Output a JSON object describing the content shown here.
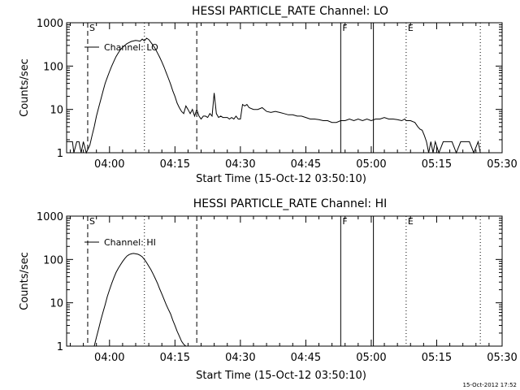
{
  "footer": {
    "timestamp": "15-Oct-2012 17:52"
  },
  "chart_data": [
    {
      "type": "line",
      "title": "HESSI PARTICLE_RATE Channel: LO",
      "xlabel": "Start Time (15-Oct-12 03:50:10)",
      "ylabel": "Counts/sec",
      "xlim": [
        "03:50:10",
        "05:30:00"
      ],
      "ylim": [
        1,
        1000
      ],
      "yscale": "log",
      "xticks": [
        "04:00",
        "04:15",
        "04:30",
        "04:45",
        "05:00",
        "05:15",
        "05:30"
      ],
      "yticks": [
        "1",
        "10",
        "100",
        "1000"
      ],
      "legend": {
        "label": "Channel: LO",
        "position": "top-left"
      },
      "markers": [
        {
          "label": "S",
          "time": "03:55:00",
          "style": "dashed"
        },
        {
          "label": "",
          "time": "04:08:00",
          "style": "dotted"
        },
        {
          "label": "",
          "time": "04:20:00",
          "style": "dashed"
        },
        {
          "label": "F",
          "time": "04:53:00",
          "style": "solid"
        },
        {
          "label": "",
          "time": "05:00:30",
          "style": "solid"
        },
        {
          "label": "E",
          "time": "05:08:00",
          "style": "dotted"
        },
        {
          "label": "",
          "time": "05:25:00",
          "style": "dotted"
        }
      ],
      "series": [
        {
          "name": "Channel: LO",
          "x": [
            "03:50:10",
            "03:51:30",
            "03:51:50",
            "03:52:30",
            "03:53:00",
            "03:53:30",
            "03:54:00",
            "03:54:40",
            "03:55:30",
            "03:56:00",
            "03:56:30",
            "03:57:00",
            "03:57:30",
            "03:58:00",
            "03:58:30",
            "03:59:00",
            "03:59:30",
            "04:00:00",
            "04:00:30",
            "04:01:00",
            "04:01:30",
            "04:02:00",
            "04:02:30",
            "04:03:00",
            "04:03:30",
            "04:04:00",
            "04:04:30",
            "04:05:00",
            "04:05:30",
            "04:06:00",
            "04:06:30",
            "04:07:00",
            "04:07:30",
            "04:08:00",
            "04:08:30",
            "04:09:00",
            "04:09:30",
            "04:10:00",
            "04:10:30",
            "04:11:00",
            "04:11:30",
            "04:12:00",
            "04:12:30",
            "04:13:00",
            "04:13:30",
            "04:14:00",
            "04:14:30",
            "04:15:00",
            "04:15:30",
            "04:16:00",
            "04:16:30",
            "04:17:00",
            "04:17:30",
            "04:18:00",
            "04:18:30",
            "04:19:00",
            "04:19:30",
            "04:20:00",
            "04:20:30",
            "04:21:00",
            "04:21:30",
            "04:22:00",
            "04:22:30",
            "04:23:00",
            "04:23:30",
            "04:24:00",
            "04:24:30",
            "04:25:00",
            "04:25:30",
            "04:26:00",
            "04:26:30",
            "04:27:00",
            "04:27:30",
            "04:28:00",
            "04:28:30",
            "04:29:00",
            "04:29:30",
            "04:30:00",
            "04:30:30",
            "04:31:00",
            "04:31:30",
            "04:32:00",
            "04:33:00",
            "04:34:00",
            "04:35:00",
            "04:36:00",
            "04:37:00",
            "04:38:00",
            "04:39:00",
            "04:40:00",
            "04:41:00",
            "04:42:00",
            "04:43:00",
            "04:44:00",
            "04:45:00",
            "04:46:00",
            "04:47:00",
            "04:48:00",
            "04:49:00",
            "04:50:00",
            "04:51:00",
            "04:52:00",
            "04:53:00",
            "04:54:00",
            "04:55:00",
            "04:56:00",
            "04:57:00",
            "04:58:00",
            "04:59:00",
            "05:00:00",
            "05:01:00",
            "05:02:00",
            "05:03:00",
            "05:04:00",
            "05:05:00",
            "05:06:00",
            "05:07:00",
            "05:07:40",
            "05:08:00",
            "05:09:00",
            "05:10:00",
            "05:10:40",
            "05:11:10",
            "05:11:40",
            "05:12:10",
            "05:12:40",
            "05:13:10",
            "05:13:40",
            "05:14:10",
            "05:14:40",
            "05:15:30",
            "05:16:30",
            "05:17:30",
            "05:18:30",
            "05:19:30",
            "05:20:30",
            "05:21:30",
            "05:22:30",
            "05:23:30",
            "05:24:30",
            "05:25:00"
          ],
          "y": [
            1.8,
            1.8,
            1,
            1.8,
            1.8,
            1,
            1.8,
            1,
            1.5,
            2.5,
            4,
            7,
            11,
            17,
            26,
            40,
            55,
            75,
            100,
            130,
            165,
            200,
            240,
            270,
            300,
            330,
            350,
            370,
            380,
            390,
            385,
            375,
            420,
            380,
            440,
            410,
            350,
            300,
            250,
            200,
            160,
            125,
            95,
            70,
            52,
            38,
            27,
            20,
            14,
            11,
            9,
            8,
            12,
            10,
            8,
            10,
            7,
            10,
            7,
            6,
            7,
            7,
            6.5,
            8,
            7,
            24,
            8,
            6.5,
            7,
            6.5,
            6.5,
            6.5,
            6,
            6.5,
            6,
            7,
            6,
            6,
            13,
            12,
            13,
            11,
            10,
            10,
            11,
            9,
            8.5,
            9,
            8.5,
            8,
            7.5,
            7.5,
            7,
            7,
            6.5,
            6,
            6,
            5.8,
            5.5,
            5.5,
            5,
            5,
            5.5,
            5.5,
            6,
            5.5,
            6,
            5.5,
            6,
            5.5,
            6,
            6,
            6.5,
            6,
            6,
            5.8,
            5.5,
            6,
            5.5,
            5.5,
            5,
            4,
            3.5,
            3.3,
            2.5,
            1.8,
            1,
            1.8,
            1,
            1.8,
            1,
            1.8,
            1.8,
            1.8,
            1,
            1.8,
            1.8,
            1.8,
            1,
            1.8,
            1
          ]
        }
      ]
    },
    {
      "type": "line",
      "title": "HESSI PARTICLE_RATE Channel: HI",
      "xlabel": "Start Time (15-Oct-12 03:50:10)",
      "ylabel": "Counts/sec",
      "xlim": [
        "03:50:10",
        "05:30:00"
      ],
      "ylim": [
        1,
        1000
      ],
      "yscale": "log",
      "xticks": [
        "04:00",
        "04:15",
        "04:30",
        "04:45",
        "05:00",
        "05:15",
        "05:30"
      ],
      "yticks": [
        "1",
        "10",
        "100",
        "1000"
      ],
      "legend": {
        "label": "Channel: HI",
        "position": "top-left"
      },
      "markers": [
        {
          "label": "S",
          "time": "03:55:00",
          "style": "dashed"
        },
        {
          "label": "",
          "time": "04:08:00",
          "style": "dotted"
        },
        {
          "label": "",
          "time": "04:20:00",
          "style": "dashed"
        },
        {
          "label": "F",
          "time": "04:53:00",
          "style": "solid"
        },
        {
          "label": "",
          "time": "05:00:30",
          "style": "solid"
        },
        {
          "label": "E",
          "time": "05:08:00",
          "style": "dotted"
        },
        {
          "label": "",
          "time": "05:25:00",
          "style": "dotted"
        }
      ],
      "series": [
        {
          "name": "Channel: HI",
          "x": [
            "03:56:30",
            "03:57:00",
            "03:57:30",
            "03:58:00",
            "03:58:30",
            "03:59:00",
            "03:59:30",
            "04:00:00",
            "04:00:30",
            "04:01:00",
            "04:01:30",
            "04:02:00",
            "04:02:30",
            "04:03:00",
            "04:03:30",
            "04:04:00",
            "04:04:30",
            "04:05:00",
            "04:05:30",
            "04:06:00",
            "04:06:30",
            "04:07:00",
            "04:07:30",
            "04:08:00",
            "04:08:30",
            "04:09:00",
            "04:09:30",
            "04:10:00",
            "04:10:30",
            "04:11:00",
            "04:11:30",
            "04:12:00",
            "04:12:30",
            "04:13:00",
            "04:13:30",
            "04:14:00",
            "04:14:30",
            "04:15:00",
            "04:15:30",
            "04:16:00",
            "04:16:30",
            "04:17:00",
            "04:17:30"
          ],
          "y": [
            1,
            1.6,
            2.5,
            4,
            6,
            9,
            14,
            20,
            28,
            38,
            50,
            62,
            75,
            90,
            105,
            120,
            130,
            135,
            138,
            135,
            132,
            125,
            115,
            100,
            85,
            70,
            58,
            46,
            36,
            28,
            21,
            16,
            12,
            9,
            7,
            5.5,
            4,
            3,
            2.2,
            1.7,
            1.3,
            1.1,
            1
          ]
        }
      ]
    }
  ]
}
